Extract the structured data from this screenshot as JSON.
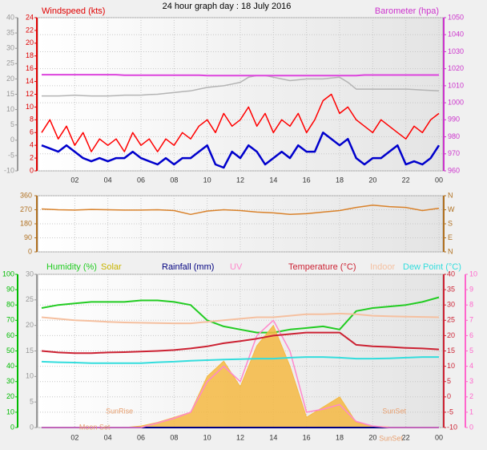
{
  "chart_data": [
    {
      "type": "line",
      "title": "24 hour graph day : 18 July 2016",
      "ylabel": "Windspeed (kts)",
      "y2label": "Barometer (hpa)",
      "x": [
        0,
        0.5,
        1,
        1.5,
        2,
        2.5,
        3,
        3.5,
        4,
        4.5,
        5,
        5.5,
        6,
        6.5,
        7,
        7.5,
        8,
        8.5,
        9,
        9.5,
        10,
        10.5,
        11,
        11.5,
        12,
        12.5,
        13,
        13.5,
        14,
        14.5,
        15,
        15.5,
        16,
        16.5,
        17,
        17.5,
        18,
        18.5,
        19,
        19.5,
        20,
        20.5,
        21,
        21.5,
        22,
        22.5,
        23,
        23.5,
        24
      ],
      "xlim": [
        0,
        24
      ],
      "xticks": [
        {
          "value": 2,
          "label": "02"
        },
        {
          "value": 4,
          "label": "04"
        },
        {
          "value": 6,
          "label": "06"
        },
        {
          "value": 8,
          "label": "08"
        },
        10,
        12,
        14,
        16,
        18,
        20,
        22,
        {
          "value": 24,
          "label": "00"
        }
      ],
      "ylim": [
        0,
        24
      ],
      "yticks": [
        0,
        2,
        4,
        6,
        8,
        10,
        12,
        14,
        16,
        18,
        20,
        22,
        24
      ],
      "y2lim": [
        960,
        1050
      ],
      "y2ticks": [
        960,
        970,
        980,
        990,
        1000,
        1010,
        1020,
        1030,
        1040,
        1050
      ],
      "y3lim": [
        -10,
        40
      ],
      "y3ticks": [
        -10,
        -5,
        0,
        5,
        10,
        15,
        20,
        25,
        30,
        35,
        40
      ],
      "axis_colors": {
        "y": "#e00000",
        "y2": "#cc33cc",
        "y3": "#999999"
      },
      "grid_axis": "y2",
      "series": [
        {
          "color": "#b4b4b4",
          "axis": "y2",
          "line_width": 1.5,
          "values": [
            1004,
            1004,
            1004,
            1004.2,
            1004.5,
            1004.2,
            1004,
            1004,
            1004,
            1004.2,
            1004.5,
            1004.5,
            1004.5,
            1004.8,
            1005,
            1005.5,
            1006,
            1006.5,
            1007,
            1008,
            1009,
            1009.5,
            1010,
            1011,
            1012,
            1015,
            1016,
            1016,
            1015,
            1014,
            1013,
            1013.5,
            1014,
            1014,
            1014,
            1014.5,
            1015,
            1012,
            1008,
            1008,
            1008,
            1008,
            1008,
            1008,
            1008,
            1007.8,
            1007.5,
            1007.2,
            1007
          ]
        },
        {
          "color": "#dd44dd",
          "axis": "y2",
          "line_width": 2,
          "values": [
            1016.5,
            1016.5,
            1016.5,
            1016.5,
            1016.5,
            1016.5,
            1016.5,
            1016.5,
            1016.5,
            1016.5,
            1016.2,
            1016.2,
            1016.2,
            1016.2,
            1016.2,
            1016.2,
            1016.2,
            1016.2,
            1016.2,
            1016.2,
            1016,
            1016,
            1016,
            1016,
            1016,
            1016,
            1016,
            1016,
            1016,
            1016,
            1016,
            1016,
            1016,
            1016,
            1016,
            1016,
            1016,
            1016,
            1016,
            1016.3,
            1016.3,
            1016.3,
            1016.3,
            1016.3,
            1016.3,
            1016.3,
            1016.3,
            1016.3,
            1016.3
          ]
        },
        {
          "color": "#ff0000",
          "line_width": 1.5,
          "values": [
            6,
            8,
            5,
            7,
            4,
            6,
            3,
            5,
            4,
            5,
            3,
            6,
            4,
            5,
            3,
            5,
            4,
            6,
            5,
            7,
            8,
            6,
            9,
            7,
            8,
            10,
            7,
            9,
            6,
            8,
            7,
            9,
            6,
            8,
            11,
            12,
            9,
            10,
            8,
            7,
            6,
            8,
            7,
            6,
            5,
            7,
            6,
            8,
            9
          ]
        },
        {
          "color": "#0000cc",
          "line_width": 2.5,
          "values": [
            4,
            3.5,
            3,
            4,
            3,
            2,
            1.5,
            2,
            1.5,
            2,
            2,
            3,
            2,
            1.5,
            1,
            2,
            1,
            2,
            2,
            3,
            4,
            1,
            0.5,
            3,
            2,
            4,
            3,
            1,
            2,
            3,
            2,
            4,
            3,
            3,
            6,
            5,
            4,
            5,
            2,
            1,
            2,
            2,
            3,
            4,
            1,
            1.5,
            1,
            2,
            4
          ]
        }
      ]
    },
    {
      "type": "line",
      "x": [
        0,
        1,
        2,
        3,
        4,
        5,
        6,
        7,
        8,
        9,
        10,
        11,
        12,
        13,
        14,
        15,
        16,
        17,
        18,
        19,
        20,
        21,
        22,
        23,
        24
      ],
      "xlim": [
        0,
        24
      ],
      "xticks": [
        2,
        4,
        6,
        8,
        10,
        12,
        14,
        16,
        18,
        20,
        22,
        24
      ],
      "ylim": [
        0,
        360
      ],
      "yticks": [
        0,
        90,
        180,
        270,
        360
      ],
      "y2lim": [
        0,
        360
      ],
      "y2ticks": [
        {
          "value": 0,
          "label": "N"
        },
        {
          "value": 90,
          "label": "E"
        },
        {
          "value": 180,
          "label": "S"
        },
        {
          "value": 270,
          "label": "W"
        },
        {
          "value": 360,
          "label": "N"
        }
      ],
      "axis_colors": {
        "y": "#b07020",
        "y2": "#b07020"
      },
      "grid_axis": "y",
      "series": [
        {
          "color": "#d9822b",
          "line_width": 1.5,
          "values": [
            275,
            270,
            268,
            272,
            270,
            268,
            268,
            270,
            265,
            240,
            262,
            270,
            265,
            255,
            250,
            240,
            245,
            255,
            265,
            285,
            300,
            290,
            285,
            265,
            280
          ]
        }
      ]
    },
    {
      "type": "line",
      "x": [
        0,
        1,
        2,
        3,
        4,
        5,
        6,
        7,
        8,
        9,
        10,
        11,
        12,
        13,
        14,
        15,
        16,
        17,
        18,
        19,
        20,
        21,
        22,
        23,
        24
      ],
      "xlim": [
        0,
        24
      ],
      "xticks": [
        {
          "value": 2,
          "label": "02"
        },
        {
          "value": 4,
          "label": "04"
        },
        {
          "value": 6,
          "label": "06"
        },
        {
          "value": 8,
          "label": "08"
        },
        10,
        12,
        14,
        16,
        18,
        20,
        22,
        {
          "value": 24,
          "label": "00"
        }
      ],
      "ylim": [
        0,
        100
      ],
      "yticks": [
        0,
        10,
        20,
        30,
        40,
        50,
        60,
        70,
        80,
        90,
        100
      ],
      "y3lim": [
        0,
        30
      ],
      "y3ticks": [
        0,
        5,
        10,
        15,
        20,
        25,
        30
      ],
      "y2lim": [
        -10,
        40
      ],
      "y2ticks": [
        -10,
        -5,
        0,
        5,
        10,
        15,
        20,
        25,
        30,
        35,
        40
      ],
      "y4lim": [
        0,
        10
      ],
      "y4ticks": [
        0,
        1,
        2,
        3,
        4,
        5,
        6,
        7,
        8,
        9,
        10
      ],
      "axis_colors": {
        "y": "#00bb00",
        "y3": "#999999",
        "y2": "#cc2233",
        "y4": "#ff66cc"
      },
      "grid_axis": "y2",
      "series": [
        {
          "name": "Humidity (%)",
          "color": "#22cc22",
          "line_width": 2,
          "values": [
            78,
            80,
            81,
            82,
            82,
            82,
            83,
            83,
            82,
            80,
            70,
            66,
            64,
            62,
            62,
            64,
            65,
            66,
            64,
            76,
            78,
            79,
            80,
            82,
            85
          ]
        },
        {
          "name": "Solar",
          "color": "#c8b400",
          "fill": "#f5b942",
          "axis": "y3",
          "line_width": 1,
          "values": [
            0,
            0,
            0,
            0,
            0,
            0,
            0.3,
            1,
            2,
            3,
            10,
            13,
            8,
            16,
            20,
            12,
            2,
            4,
            6,
            1,
            0.3,
            0.1,
            0,
            0,
            0
          ]
        },
        {
          "name": "Rainfall (mm)",
          "color": "#000080",
          "axis": "y3",
          "line_width": 2,
          "values": [
            0,
            0,
            0,
            0,
            0,
            0,
            0,
            0,
            0,
            0,
            0,
            0,
            0,
            0,
            0,
            0,
            0,
            0,
            0,
            0,
            0,
            0,
            0,
            0,
            0
          ]
        },
        {
          "name": "UV",
          "color": "#ff88cc",
          "axis": "y4",
          "line_width": 1.5,
          "values": [
            0,
            0,
            0,
            0,
            0,
            0,
            0,
            0.3,
            0.6,
            1,
            3,
            4,
            3,
            6,
            7,
            5,
            1,
            1.2,
            1.5,
            0.4,
            0.1,
            0,
            0,
            0,
            0
          ]
        },
        {
          "name": "Temperature (°C)",
          "color": "#cc2233",
          "axis": "y2",
          "line_width": 2,
          "values": [
            15,
            14.5,
            14.3,
            14.3,
            14.5,
            14.6,
            14.8,
            15,
            15.3,
            15.8,
            16.5,
            17.5,
            18.2,
            19,
            20,
            20.5,
            21,
            21,
            21,
            17,
            16.5,
            16.3,
            16,
            15.8,
            15.5
          ]
        },
        {
          "name": "Indoor",
          "color": "#f5c0a0",
          "axis": "y2",
          "line_width": 2,
          "values": [
            26,
            25.5,
            25,
            24.8,
            24.5,
            24.3,
            24.2,
            24.1,
            24,
            24,
            24.5,
            25,
            25.5,
            26,
            26,
            26.5,
            27,
            27,
            27.2,
            27,
            26.5,
            26.3,
            26.2,
            26.1,
            26
          ]
        },
        {
          "name": "Dew Point (°C)",
          "color": "#33dddd",
          "axis": "y2",
          "line_width": 2,
          "values": [
            11.5,
            11.3,
            11.2,
            11,
            11,
            11,
            11,
            11.3,
            11.5,
            11.8,
            12,
            12.2,
            12.3,
            12.5,
            12.5,
            12.8,
            13,
            13,
            12.8,
            12.5,
            12.5,
            12.6,
            12.8,
            13,
            13
          ]
        }
      ],
      "annotations": [
        {
          "text": "SunRise",
          "x": 4.7
        },
        {
          "text": "SunSet",
          "x": 21.3
        },
        {
          "text": "Moon Set",
          "x": 3.2
        },
        {
          "text": "SunSet",
          "x": 21.1
        }
      ],
      "annotation_color": "#e8a070"
    }
  ]
}
